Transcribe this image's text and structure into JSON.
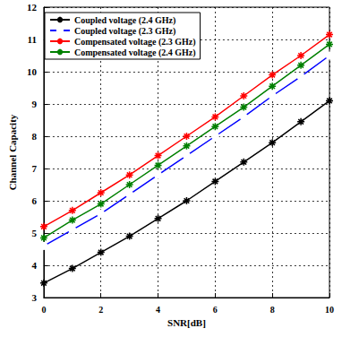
{
  "chart_data": {
    "type": "line",
    "x_label": "SNR[dB]",
    "y_label": "Channel Capacity",
    "x": [
      0,
      1,
      2,
      3,
      4,
      5,
      6,
      7,
      8,
      9,
      10
    ],
    "xlim": [
      0,
      10
    ],
    "xticks": [
      0,
      2,
      4,
      6,
      8,
      10
    ],
    "ylim": [
      3,
      12
    ],
    "yticks": [
      3,
      4,
      5,
      6,
      7,
      8,
      9,
      10,
      11,
      12
    ],
    "grid": true,
    "legend": "upper left",
    "series": [
      {
        "name": "Coupled voltage (2.4 GHz)",
        "color": "#000000",
        "marker": "star",
        "line_style": "solid",
        "values": [
          3.45,
          3.9,
          4.4,
          4.9,
          5.45,
          6.0,
          6.6,
          7.2,
          7.8,
          8.45,
          9.1
        ]
      },
      {
        "name": "Coupled voltage (2.3 GHz)",
        "color": "#0000ff",
        "marker": "circle",
        "line_style": "solid",
        "values": [
          4.6,
          5.1,
          5.6,
          6.2,
          6.8,
          7.4,
          8.0,
          8.6,
          9.25,
          9.85,
          10.5
        ]
      },
      {
        "name": "Compensated voltage (2.3 GHz)",
        "color": "#ff0000",
        "marker": "star",
        "line_style": "solid",
        "values": [
          5.2,
          5.7,
          6.25,
          6.8,
          7.4,
          8.0,
          8.6,
          9.25,
          9.9,
          10.5,
          11.15
        ]
      },
      {
        "name": "Compensated voltage (2.4 GHz)",
        "color": "#008000",
        "marker": "star",
        "line_style": "solid",
        "values": [
          4.85,
          5.4,
          5.9,
          6.5,
          7.1,
          7.7,
          8.3,
          8.9,
          9.55,
          10.2,
          10.85
        ]
      }
    ]
  }
}
